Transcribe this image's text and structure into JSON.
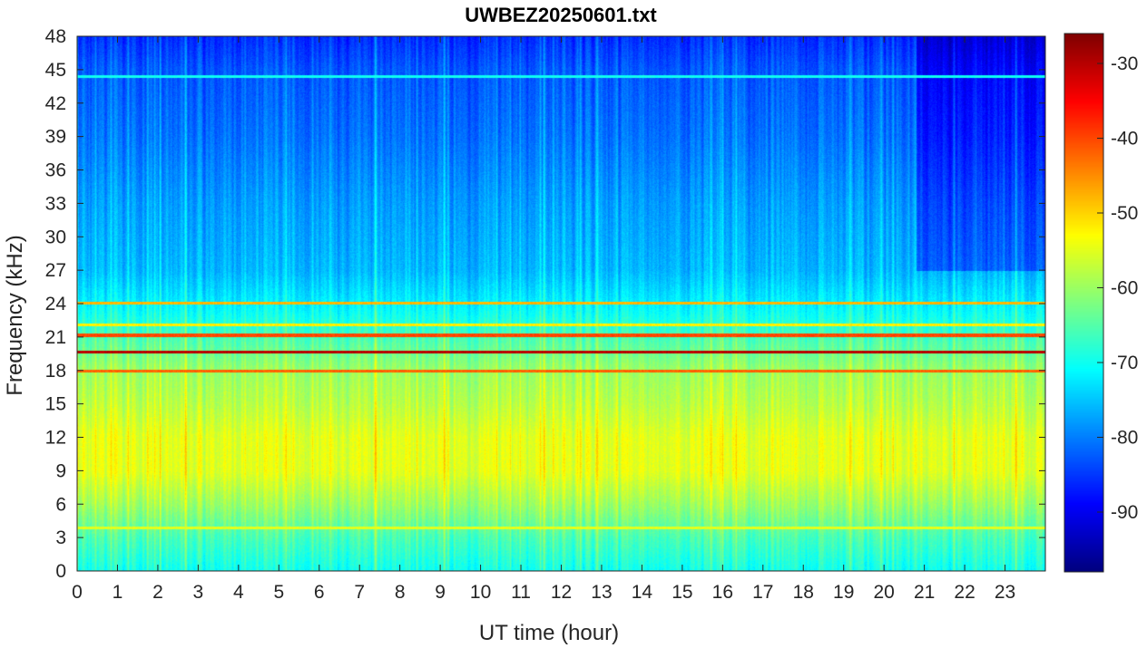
{
  "chart_data": {
    "type": "heatmap",
    "title": "UWBEZ20250601.txt",
    "xlabel": "UT time (hour)",
    "ylabel": "Frequency (kHz)",
    "xlim": [
      0,
      24
    ],
    "ylim": [
      0,
      48
    ],
    "x_ticks": [
      "0",
      "1",
      "2",
      "3",
      "4",
      "5",
      "6",
      "7",
      "8",
      "9",
      "10",
      "11",
      "12",
      "13",
      "14",
      "15",
      "16",
      "17",
      "18",
      "19",
      "20",
      "21",
      "22",
      "23"
    ],
    "y_ticks": [
      "0",
      "3",
      "6",
      "9",
      "12",
      "15",
      "18",
      "21",
      "24",
      "27",
      "30",
      "33",
      "36",
      "39",
      "42",
      "45",
      "48"
    ],
    "colorbar": {
      "colormap": "jet",
      "clim": [
        -98,
        -26
      ],
      "ticks": [
        "-90",
        "-80",
        "-70",
        "-60",
        "-50",
        "-40",
        "-30"
      ]
    },
    "bands_kHz": [
      {
        "freq": 19.7,
        "level": -30
      },
      {
        "freq": 21.2,
        "level": -40
      },
      {
        "freq": 18.0,
        "level": -42
      },
      {
        "freq": 24.1,
        "level": -48
      },
      {
        "freq": 22.1,
        "level": -52
      },
      {
        "freq": 3.9,
        "level": -55
      },
      {
        "freq": 44.4,
        "level": -70
      }
    ],
    "broadband_profile": [
      {
        "freq": 0,
        "level": -70
      },
      {
        "freq": 3,
        "level": -66
      },
      {
        "freq": 6,
        "level": -60
      },
      {
        "freq": 9,
        "level": -55
      },
      {
        "freq": 12,
        "level": -55
      },
      {
        "freq": 15,
        "level": -58
      },
      {
        "freq": 18,
        "level": -60
      },
      {
        "freq": 21,
        "level": -66
      },
      {
        "freq": 24,
        "level": -72
      },
      {
        "freq": 27,
        "level": -76
      },
      {
        "freq": 33,
        "level": -78
      },
      {
        "freq": 39,
        "level": -81
      },
      {
        "freq": 45,
        "level": -83
      },
      {
        "freq": 48,
        "level": -86
      }
    ]
  }
}
